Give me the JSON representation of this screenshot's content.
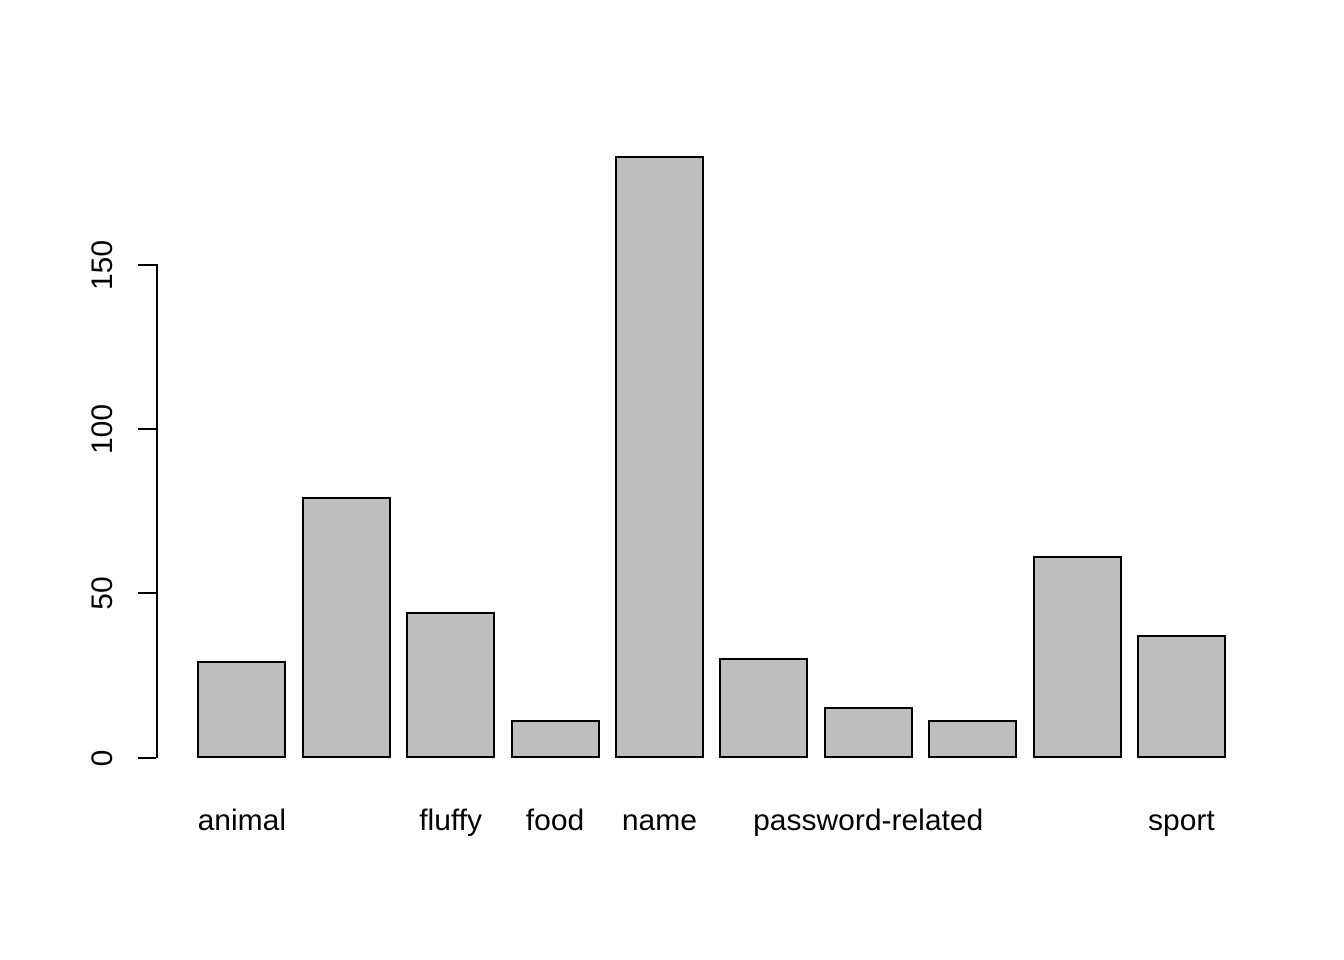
{
  "figure": {
    "background": "#FFFFFF"
  },
  "chart_data": {
    "type": "bar",
    "title": "",
    "xlabel": "",
    "ylabel": "",
    "categories": [
      "animal",
      "",
      "fluffy",
      "food",
      "name",
      "",
      "password-related",
      "",
      "",
      "sport"
    ],
    "values": [
      29,
      79,
      44,
      11,
      183,
      30,
      15,
      11,
      61,
      37
    ],
    "yticks": [
      0,
      50,
      100,
      150
    ],
    "ylim": [
      0,
      190
    ],
    "grid": false,
    "legend": false,
    "bar_fill": "#BEBEBE",
    "bar_border": "#000000",
    "axis_color": "#000000",
    "text_color": "#000000"
  }
}
